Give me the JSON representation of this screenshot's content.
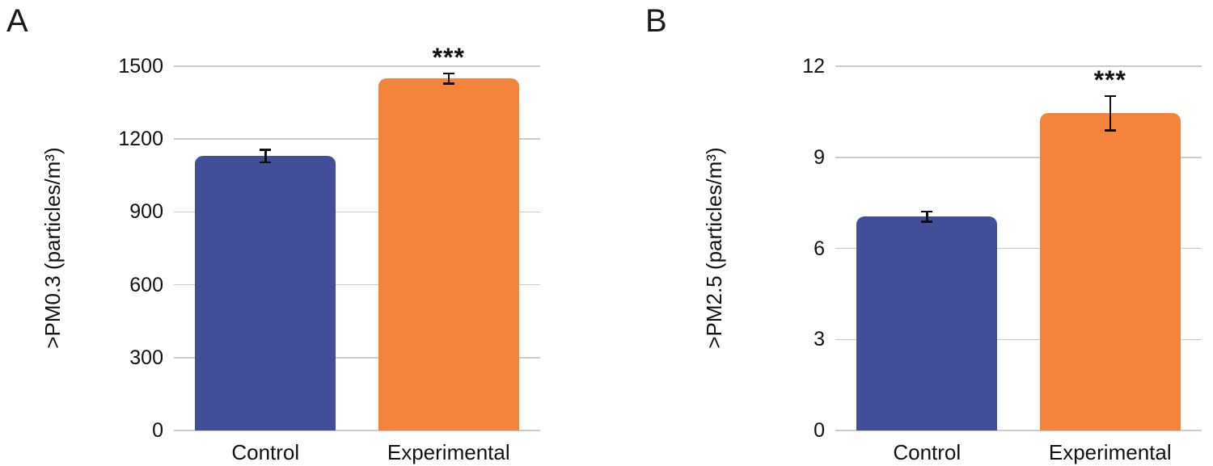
{
  "figure": {
    "background": "#ffffff",
    "gridline_color": "#cbcbcb",
    "error_bar_color": "#0f0f0f",
    "text_color": "#111111"
  },
  "chart_data": [
    {
      "type": "bar",
      "panel_label": "A",
      "title": "",
      "xlabel": "",
      "ylabel": ">PM0.3 (particles/m³)",
      "categories": [
        "Control",
        "Experimental"
      ],
      "values": [
        1130,
        1450
      ],
      "errors": [
        30,
        25
      ],
      "bar_colors": [
        "#434e9b",
        "#f4843c"
      ],
      "yticks": [
        0,
        300,
        600,
        900,
        1200,
        1500
      ],
      "ylim": [
        0,
        1500
      ],
      "grid": true,
      "legend": "none",
      "annotations": [
        {
          "text": "***",
          "category_index": 1,
          "meaning": "significance-marker"
        }
      ]
    },
    {
      "type": "bar",
      "panel_label": "B",
      "title": "",
      "xlabel": "",
      "ylabel": ">PM2.5 (particles/m³)",
      "categories": [
        "Control",
        "Experimental"
      ],
      "values": [
        7.05,
        10.45
      ],
      "errors": [
        0.2,
        0.6
      ],
      "bar_colors": [
        "#434e9b",
        "#f4843c"
      ],
      "yticks": [
        0,
        3,
        6,
        9,
        12
      ],
      "ylim": [
        0,
        12
      ],
      "grid": true,
      "legend": "none",
      "annotations": [
        {
          "text": "***",
          "category_index": 1,
          "meaning": "significance-marker"
        }
      ]
    }
  ]
}
